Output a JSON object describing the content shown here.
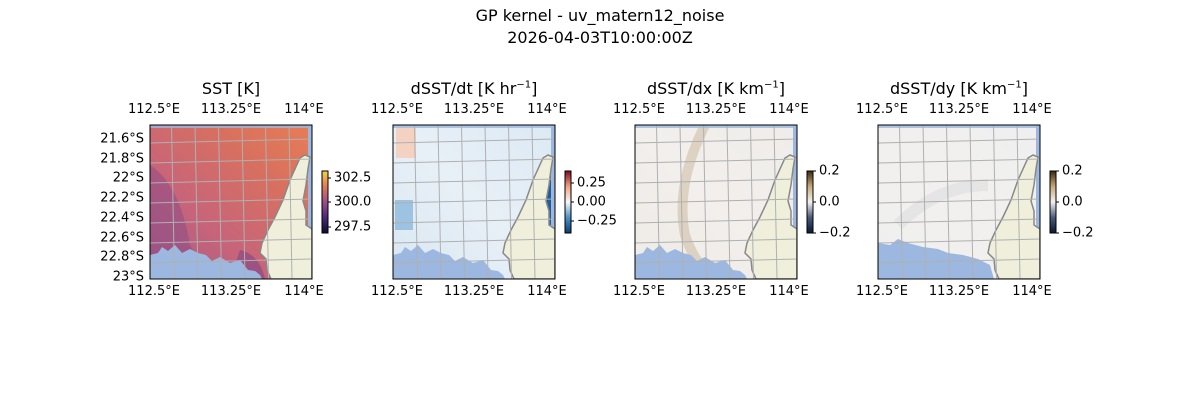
{
  "figure": {
    "title_line1": "GP kernel - uv_matern12_noise",
    "title_line2": "2026-04-03T10:00:00Z"
  },
  "colors": {
    "land": "#efefdc",
    "masked": "#9db8e0",
    "grid": "#b0b0b0",
    "coast": "#888888"
  },
  "chart_data": [
    {
      "type": "heatmap",
      "title": "SST [K]",
      "x_ticks": [
        "112.5°E",
        "113.25°E",
        "114°E"
      ],
      "y_ticks": [
        "21.6°S",
        "21.8°S",
        "22°S",
        "22.2°S",
        "22.4°S",
        "22.6°S",
        "22.8°S",
        "23°S"
      ],
      "colorbar_ticks": [
        "302.5",
        "300.0",
        "297.5"
      ],
      "colormap": [
        "#0d0b2e",
        "#4a2a7a",
        "#9c4f8a",
        "#e07a55",
        "#f5d24a"
      ]
    },
    {
      "type": "heatmap",
      "title": "dSST/dt [K hr",
      "title_sup": "−1",
      "title_end": "]",
      "x_ticks": [
        "112.5°E",
        "113.25°E",
        "114°E"
      ],
      "colorbar_ticks": [
        "0.25",
        "0.00",
        "−0.25"
      ],
      "colormap": [
        "#0b3b78",
        "#4a93c6",
        "#f7f7f7",
        "#f2a283",
        "#7a0b22"
      ]
    },
    {
      "type": "heatmap",
      "title": "dSST/dx [K km",
      "title_sup": "−1",
      "title_end": "]",
      "x_ticks": [
        "112.5°E",
        "113.25°E",
        "114°E"
      ],
      "colorbar_ticks": [
        "0.2",
        "0.0",
        "−0.2"
      ],
      "colormap": [
        "#0a1a33",
        "#4a5a7a",
        "#f4f2f0",
        "#c9a878",
        "#3a2a10"
      ]
    },
    {
      "type": "heatmap",
      "title": "dSST/dy [K km",
      "title_sup": "−1",
      "title_end": "]",
      "x_ticks": [
        "112.5°E",
        "113.25°E",
        "114°E"
      ],
      "colorbar_ticks": [
        "0.2",
        "0.0",
        "−0.2"
      ],
      "colormap": [
        "#0a1a33",
        "#4a5a7a",
        "#f4f2f0",
        "#c9a878",
        "#3a2a10"
      ]
    }
  ]
}
